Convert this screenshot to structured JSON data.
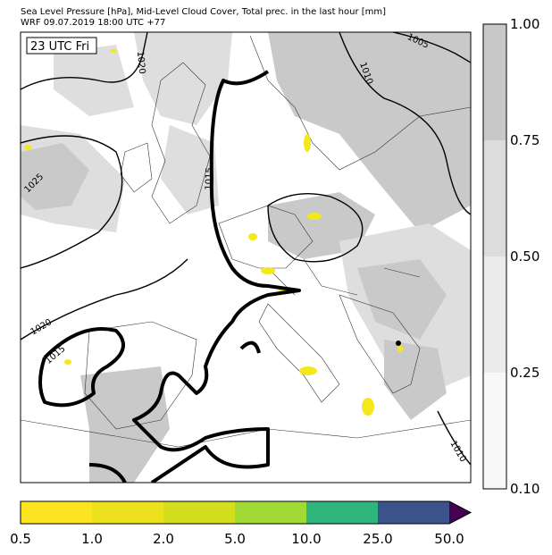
{
  "header": {
    "line1": "Sea Level Pressure [hPa], Mid-Level Cloud Cover, Total prec. in the last hour [mm]",
    "line2": "WRF 09.07.2019 18:00 UTC +77"
  },
  "map": {
    "time_label": "23 UTC Fri",
    "isobar_labels": [
      "1020",
      "1010",
      "1005",
      "1015",
      "1025",
      "1020",
      "1015",
      "1010"
    ]
  },
  "cloud_colorbar": {
    "ticks": [
      "1.00",
      "0.75",
      "0.50",
      "0.25",
      "0.10"
    ]
  },
  "precip_colorbar": {
    "ticks": [
      "0.5",
      "1.0",
      "2.0",
      "5.0",
      "10.0",
      "25.0",
      "50.0"
    ]
  }
}
